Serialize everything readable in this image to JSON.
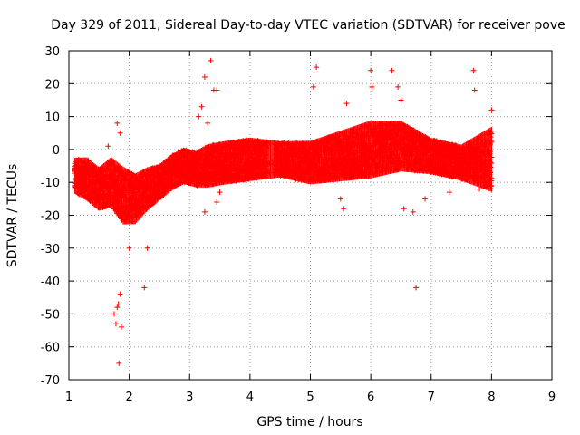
{
  "chart_data": {
    "type": "scatter",
    "title": "Day 329 of 2011, Sidereal Day-to-day VTEC variation (SDTVAR) for receiver pove",
    "xlabel": "GPS time / hours",
    "ylabel": "SDTVAR / TECUs",
    "xlim": [
      1,
      9
    ],
    "ylim": [
      -70,
      30
    ],
    "xticks": [
      "1",
      "2",
      "3",
      "4",
      "5",
      "6",
      "7",
      "8",
      "9"
    ],
    "yticks": [
      "30",
      "20",
      "10",
      "0",
      "-10",
      "-20",
      "-30",
      "-40",
      "-50",
      "-60",
      "-70"
    ],
    "grid": true,
    "marker": "+",
    "color": "#ff0000",
    "series": [
      {
        "name": "SDTVAR",
        "band_centre": [
          [
            1.1,
            -8
          ],
          [
            1.3,
            -9
          ],
          [
            1.5,
            -12
          ],
          [
            1.7,
            -10
          ],
          [
            1.9,
            -14
          ],
          [
            2.1,
            -15
          ],
          [
            2.3,
            -12
          ],
          [
            2.5,
            -10
          ],
          [
            2.7,
            -7
          ],
          [
            2.9,
            -5
          ],
          [
            3.1,
            -6
          ],
          [
            3.3,
            -5
          ],
          [
            3.6,
            -4
          ],
          [
            4.0,
            -3
          ],
          [
            4.5,
            -3
          ],
          [
            5.0,
            -4
          ],
          [
            5.5,
            -2
          ],
          [
            6.0,
            0
          ],
          [
            6.5,
            1
          ],
          [
            7.0,
            -2
          ],
          [
            7.5,
            -4
          ],
          [
            8.0,
            -3
          ]
        ],
        "band_halfwidth": [
          [
            1.1,
            5
          ],
          [
            1.3,
            6
          ],
          [
            1.5,
            6
          ],
          [
            1.7,
            7
          ],
          [
            1.9,
            8
          ],
          [
            2.1,
            7
          ],
          [
            2.3,
            6
          ],
          [
            2.5,
            5
          ],
          [
            2.7,
            5
          ],
          [
            2.9,
            5
          ],
          [
            3.1,
            5
          ],
          [
            3.3,
            6
          ],
          [
            3.6,
            6
          ],
          [
            4.0,
            6
          ],
          [
            4.5,
            5
          ],
          [
            5.0,
            6
          ],
          [
            5.5,
            7
          ],
          [
            6.0,
            8
          ],
          [
            6.5,
            7
          ],
          [
            7.0,
            5
          ],
          [
            7.5,
            5
          ],
          [
            8.0,
            9
          ]
        ],
        "outliers": [
          [
            1.8,
            8
          ],
          [
            1.85,
            5
          ],
          [
            1.65,
            1
          ],
          [
            1.75,
            -50
          ],
          [
            1.8,
            -48
          ],
          [
            1.82,
            -47
          ],
          [
            1.85,
            -44
          ],
          [
            1.87,
            -54
          ],
          [
            1.78,
            -53
          ],
          [
            1.83,
            -65
          ],
          [
            2.25,
            -42
          ],
          [
            2.0,
            -30
          ],
          [
            2.3,
            -30
          ],
          [
            3.35,
            27
          ],
          [
            3.25,
            22
          ],
          [
            3.4,
            18
          ],
          [
            3.45,
            18
          ],
          [
            3.2,
            13
          ],
          [
            3.15,
            10
          ],
          [
            3.3,
            8
          ],
          [
            3.25,
            -19
          ],
          [
            3.5,
            -13
          ],
          [
            3.45,
            -16
          ],
          [
            5.1,
            25
          ],
          [
            5.05,
            19
          ],
          [
            5.5,
            -15
          ],
          [
            5.55,
            -18
          ],
          [
            5.6,
            14
          ],
          [
            6.0,
            24
          ],
          [
            6.02,
            19
          ],
          [
            6.35,
            24
          ],
          [
            6.45,
            19
          ],
          [
            6.5,
            15
          ],
          [
            6.55,
            -18
          ],
          [
            6.7,
            -19
          ],
          [
            6.75,
            -42
          ],
          [
            6.9,
            -15
          ],
          [
            7.7,
            24
          ],
          [
            7.72,
            18
          ],
          [
            7.3,
            -13
          ],
          [
            7.8,
            -12
          ],
          [
            8.0,
            12
          ]
        ]
      }
    ]
  }
}
